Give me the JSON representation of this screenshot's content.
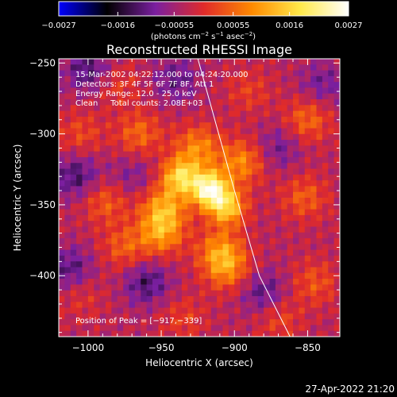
{
  "chart_data": {
    "type": "heatmap",
    "title": "Reconstructed RHESSI Image",
    "xlabel": "Heliocentric X (arcsec)",
    "ylabel": "Heliocentric Y (arcsec)",
    "xlim": [
      -1020,
      -828
    ],
    "ylim": [
      -443,
      -247
    ],
    "x_ticks": [
      -1000,
      -950,
      -900,
      -850
    ],
    "y_ticks": [
      -250,
      -300,
      -350,
      -400
    ],
    "x_tick_labels": [
      "−1000",
      "−950",
      "−900",
      "−850"
    ],
    "y_tick_labels": [
      "−250",
      "−300",
      "−350",
      "−400"
    ],
    "colorbar": {
      "range": [
        -0.0027,
        0.0027
      ],
      "tick_values": [
        -0.0027,
        -0.0016,
        -0.00055,
        0.00055,
        0.0016,
        0.0027
      ],
      "tick_labels": [
        "−0.0027",
        "−0.0016",
        "−0.00055",
        "0.00055",
        "0.0016",
        "0.0027"
      ],
      "unit_text": "(photons cm",
      "unit_sup1": "−2",
      "unit_mid": " s",
      "unit_sup2": "−1",
      "unit_mid2": " asec",
      "unit_sup3": "−2",
      "unit_end": ")",
      "colormap": [
        "#0000ff",
        "#000000",
        "#7a1fa0",
        "#e02a2a",
        "#ff8a00",
        "#ffe94a",
        "#ffffff"
      ]
    },
    "info_lines": [
      "15-Mar-2002 04:22:12.000 to 04:24:20.000",
      "Detectors: 3F 4F 5F 6F 7F 8F, Att 1",
      "Energy Range: 12.0 - 25.0 keV",
      "Clean     Total counts: 2.08E+03"
    ],
    "peak_label": "Position of Peak = [−917,−339]",
    "peak": [
      -917,
      -339
    ],
    "sources": [
      {
        "x": -917,
        "y": -339,
        "value": 0.0027
      },
      {
        "x": -937,
        "y": -330,
        "value": 0.0019
      },
      {
        "x": -905,
        "y": -352,
        "value": 0.0018
      },
      {
        "x": -948,
        "y": -352,
        "value": 0.0014
      },
      {
        "x": -925,
        "y": -310,
        "value": 0.0012
      },
      {
        "x": -895,
        "y": -320,
        "value": 0.0012
      },
      {
        "x": -950,
        "y": -370,
        "value": 0.0013
      },
      {
        "x": -910,
        "y": -382,
        "value": 0.0011
      },
      {
        "x": -905,
        "y": -395,
        "value": 0.0011
      },
      {
        "x": -965,
        "y": -300,
        "value": 0.0009
      },
      {
        "x": -988,
        "y": -348,
        "value": 0.0008
      },
      {
        "x": -975,
        "y": -380,
        "value": 0.0008
      },
      {
        "x": -850,
        "y": -290,
        "value": 0.0009
      },
      {
        "x": -852,
        "y": -345,
        "value": 0.0008
      },
      {
        "x": -845,
        "y": -405,
        "value": 0.0007
      },
      {
        "x": -1005,
        "y": -300,
        "value": 0.0006
      },
      {
        "x": -980,
        "y": -265,
        "value": 0.0005
      },
      {
        "x": -890,
        "y": -270,
        "value": 0.0005
      },
      {
        "x": -1005,
        "y": -415,
        "value": 0.0004
      },
      {
        "x": -935,
        "y": -430,
        "value": 0.0005
      },
      {
        "x": -870,
        "y": -430,
        "value": 0.0006
      },
      {
        "x": -1000,
        "y": -255,
        "value": -0.0009
      },
      {
        "x": -940,
        "y": -262,
        "value": -0.0007
      },
      {
        "x": -1008,
        "y": -330,
        "value": -0.0009
      },
      {
        "x": -1012,
        "y": -395,
        "value": -0.0008
      },
      {
        "x": -960,
        "y": -405,
        "value": -0.0009
      },
      {
        "x": -880,
        "y": -412,
        "value": -0.0008
      },
      {
        "x": -870,
        "y": -310,
        "value": -0.0006
      },
      {
        "x": -840,
        "y": -265,
        "value": -0.0006
      },
      {
        "x": -970,
        "y": -330,
        "value": -0.0005
      }
    ],
    "limb": {
      "points": [
        [
          -925,
          -247
        ],
        [
          -900,
          -340
        ],
        [
          -883,
          -400
        ],
        [
          -862,
          -443
        ]
      ]
    }
  },
  "date_stamp": "27-Apr-2022 21:20"
}
